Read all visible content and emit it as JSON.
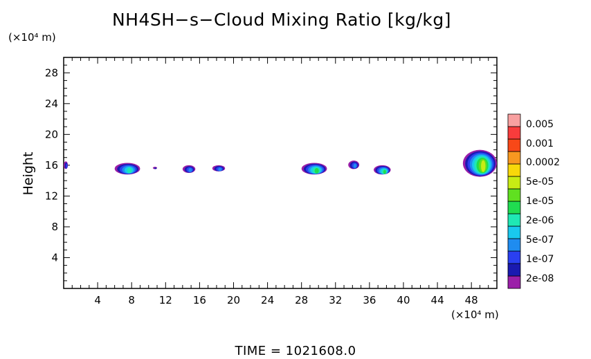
{
  "chart_data": {
    "type": "heatmap",
    "title": "NH4SH−s−Cloud Mixing Ratio [kg/kg]",
    "ylabel": "Height",
    "xlabel": "",
    "x_unit": "(×10⁴ m)",
    "y_unit": "(×10⁴ m)",
    "xlim": [
      0,
      51
    ],
    "ylim": [
      0,
      30
    ],
    "x_ticks": [
      4,
      8,
      12,
      16,
      20,
      24,
      28,
      32,
      36,
      40,
      44,
      48
    ],
    "y_ticks": [
      4,
      8,
      12,
      16,
      20,
      24,
      28
    ],
    "x_tick_labels": [
      "4",
      "8",
      "12",
      "16",
      "20",
      "24",
      "28",
      "32",
      "36",
      "40",
      "44",
      "48"
    ],
    "y_tick_labels": [
      "4",
      "8",
      "12",
      "16",
      "20",
      "24",
      "28"
    ],
    "colorbar": {
      "labels": [
        "0.005",
        "0.001",
        "0.0002",
        "5e-05",
        "1e-05",
        "2e-06",
        "5e-07",
        "1e-07",
        "2e-08"
      ],
      "colors": [
        "#9b1fa8",
        "#1a1ab0",
        "#2a40f0",
        "#1f8cf0",
        "#19c8ee",
        "#1fe8b4",
        "#20dc50",
        "#60e020",
        "#c8ec14",
        "#f8d80a",
        "#f89820",
        "#f84818",
        "#f83c3c",
        "#f8a0a0"
      ]
    },
    "cloud_features": [
      {
        "x_range": [
          0,
          0.5
        ],
        "height_range": [
          15.5,
          16.5
        ],
        "peak": "1e-07"
      },
      {
        "x_range": [
          6,
          9
        ],
        "height_range": [
          14.8,
          16.3
        ],
        "peak": "2e-06"
      },
      {
        "x_range": [
          10.5,
          11
        ],
        "height_range": [
          15.5,
          15.8
        ],
        "peak": "2e-08"
      },
      {
        "x_range": [
          14,
          15.5
        ],
        "height_range": [
          15,
          16
        ],
        "peak": "5e-07"
      },
      {
        "x_range": [
          17.5,
          19
        ],
        "height_range": [
          15.2,
          16
        ],
        "peak": "5e-07"
      },
      {
        "x_range": [
          28,
          31
        ],
        "height_range": [
          14.8,
          16.3
        ],
        "peak": "1e-05"
      },
      {
        "x_range": [
          33.5,
          34.8
        ],
        "height_range": [
          15.5,
          16.6
        ],
        "peak": "5e-07"
      },
      {
        "x_range": [
          36.5,
          38.5
        ],
        "height_range": [
          14.8,
          16
        ],
        "peak": "1e-05"
      },
      {
        "x_range": [
          47,
          51
        ],
        "height_range": [
          14.5,
          18
        ],
        "peak": "5e-05"
      }
    ]
  },
  "footer": "TIME =  1021608.0"
}
